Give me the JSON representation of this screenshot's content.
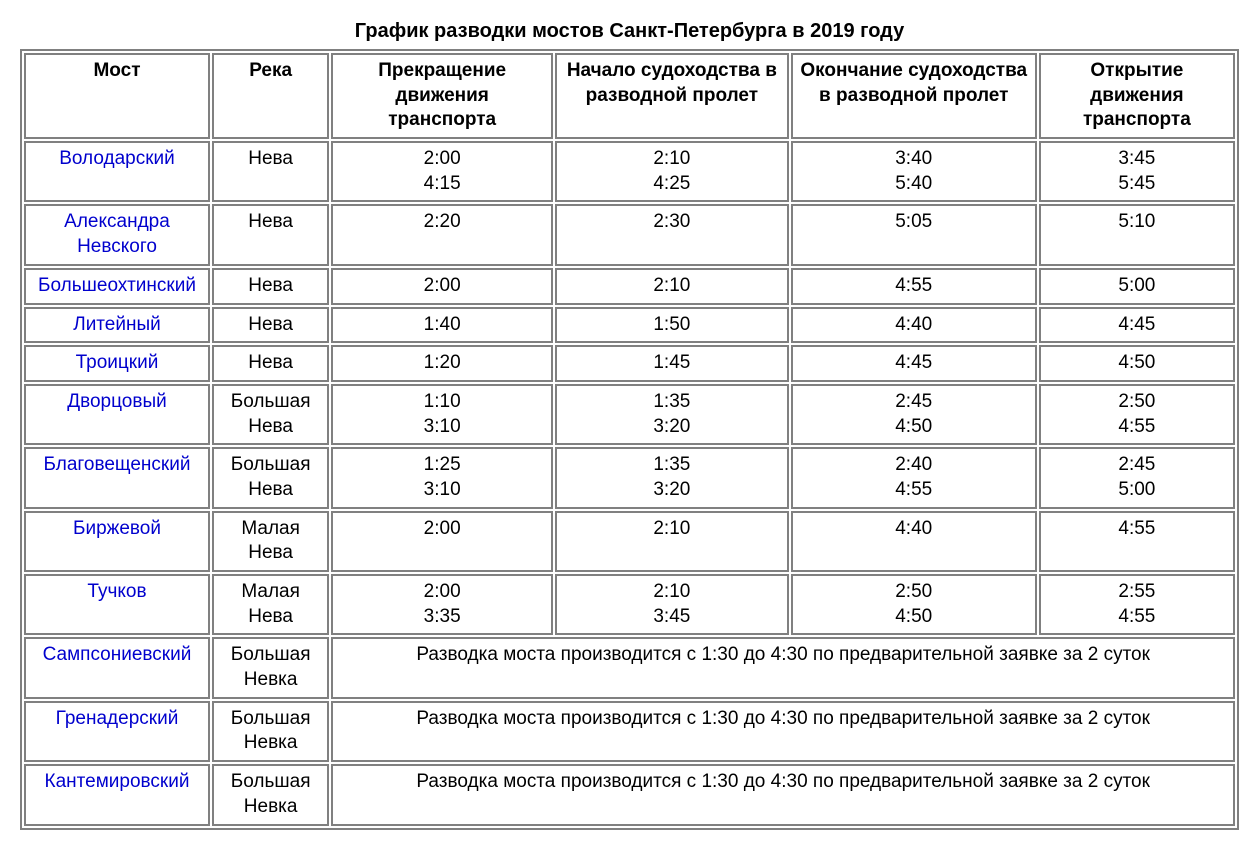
{
  "title": "График разводки мостов Санкт-Петербурга в 2019 году",
  "headers": {
    "col0": "Мост",
    "col1": "Река",
    "col2": "Прекращение движения транспорта",
    "col3": "Начало судоходства в разводной пролет",
    "col4": "Окончание судоходства в разводной пролет",
    "col5": "Открытие движения транспорта"
  },
  "rows": [
    {
      "bridge": "Володарский",
      "river": "Нева",
      "stop": "2:00\n4:15",
      "nav_start": "2:10\n4:25",
      "nav_end": "3:40\n5:40",
      "open": "3:45\n5:45",
      "note": null
    },
    {
      "bridge": "Александра Невского",
      "river": "Нева",
      "stop": "2:20",
      "nav_start": "2:30",
      "nav_end": "5:05",
      "open": "5:10",
      "note": null
    },
    {
      "bridge": "Большеохтинский",
      "river": "Нева",
      "stop": "2:00",
      "nav_start": "2:10",
      "nav_end": "4:55",
      "open": "5:00",
      "note": null
    },
    {
      "bridge": "Литейный",
      "river": "Нева",
      "stop": "1:40",
      "nav_start": "1:50",
      "nav_end": "4:40",
      "open": "4:45",
      "note": null
    },
    {
      "bridge": "Троицкий",
      "river": "Нева",
      "stop": "1:20",
      "nav_start": "1:45",
      "nav_end": "4:45",
      "open": "4:50",
      "note": null
    },
    {
      "bridge": "Дворцовый",
      "river": "Большая Нева",
      "stop": "1:10\n3:10",
      "nav_start": "1:35\n3:20",
      "nav_end": "2:45\n4:50",
      "open": "2:50\n4:55",
      "note": null
    },
    {
      "bridge": "Благовещенский",
      "river": "Большая Нева",
      "stop": "1:25\n3:10",
      "nav_start": "1:35\n3:20",
      "nav_end": "2:40\n4:55",
      "open": "2:45\n5:00",
      "note": null
    },
    {
      "bridge": "Биржевой",
      "river": "Малая Нева",
      "stop": "2:00",
      "nav_start": "2:10",
      "nav_end": "4:40",
      "open": "4:55",
      "note": null
    },
    {
      "bridge": "Тучков",
      "river": "Малая Нева",
      "stop": "2:00\n3:35",
      "nav_start": "2:10\n3:45",
      "nav_end": "2:50\n4:50",
      "open": "2:55\n4:55",
      "note": null
    },
    {
      "bridge": "Сампсониевский",
      "river": "Большая Невка",
      "stop": null,
      "nav_start": null,
      "nav_end": null,
      "open": null,
      "note": "Разводка моста производится с 1:30 до 4:30 по предварительной заявке за 2 суток"
    },
    {
      "bridge": "Гренадерский",
      "river": "Большая Невка",
      "stop": null,
      "nav_start": null,
      "nav_end": null,
      "open": null,
      "note": "Разводка моста производится с 1:30 до 4:30 по предварительной заявке за 2 суток"
    },
    {
      "bridge": "Кантемировский",
      "river": "Большая Невка",
      "stop": null,
      "nav_start": null,
      "nav_end": null,
      "open": null,
      "note": "Разводка моста производится с 1:30 до 4:30 по предварительной заявке за 2 суток"
    }
  ],
  "styling": {
    "link_color": "#0000cd",
    "text_color": "#000000",
    "border_color": "#808080",
    "background_color": "#ffffff",
    "font_family": "Arial, sans-serif",
    "title_fontsize": 20,
    "cell_fontsize": 19
  }
}
